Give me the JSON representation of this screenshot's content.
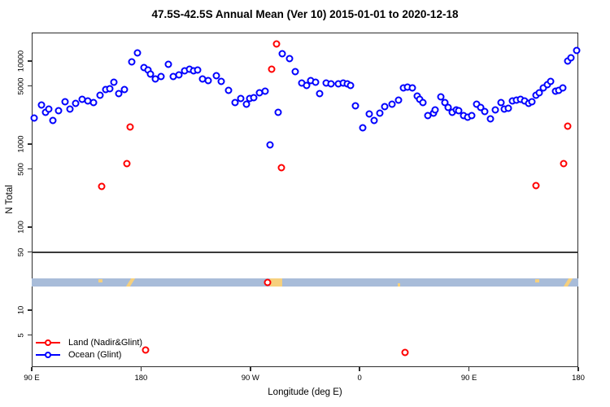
{
  "title": "47.5S-42.5S Annual Mean (Ver 10)   2015-01-01 to 2020-12-18",
  "chart_data": {
    "type": "scatter",
    "title": "47.5S-42.5S Annual Mean (Ver 10)   2015-01-01 to 2020-12-18",
    "xlabel": "Longitude (deg E)",
    "ylabel": "N Total",
    "y_scale": "log",
    "ylim": [
      2.06,
      22000
    ],
    "x_axis_span_deg": 450,
    "x_ticks": [
      {
        "deg": 0,
        "label": "90 E"
      },
      {
        "deg": 90,
        "label": "180"
      },
      {
        "deg": 180,
        "label": "90 W"
      },
      {
        "deg": 270,
        "label": "0"
      },
      {
        "deg": 360,
        "label": "90 E"
      },
      {
        "deg": 450,
        "label": "180"
      }
    ],
    "y_ticks": [
      {
        "value": 10000,
        "label": "10000"
      },
      {
        "value": 5000,
        "label": "5000"
      },
      {
        "value": 1000,
        "label": "1000"
      },
      {
        "value": 500,
        "label": "500"
      },
      {
        "value": 100,
        "label": "100"
      },
      {
        "value": 50,
        "label": "50"
      },
      {
        "value": 10,
        "label": "10"
      },
      {
        "value": 5,
        "label": "5"
      }
    ],
    "reference_line_value": 50,
    "grid": false,
    "legend_position": "bottom-left",
    "map_strip": {
      "ocean_color": "#a8bcd9",
      "land_color": "#f6d07d",
      "value_range": [
        19.2,
        24.1
      ],
      "land_patches": [
        {
          "name": "tasmania",
          "deg_from": 54.9,
          "deg_to": 58.3,
          "align": "top",
          "slant": false
        },
        {
          "name": "new-zealand",
          "deg_from": 76.0,
          "deg_to": 83.5,
          "align": "full",
          "slant": true
        },
        {
          "name": "south-america",
          "deg_from": 196.5,
          "deg_to": 206.5,
          "align": "full",
          "slant": false
        },
        {
          "name": "small-island",
          "deg_from": 301.5,
          "deg_to": 303.5,
          "align": "bottom",
          "slant": false
        },
        {
          "name": "tasmania",
          "deg_from": 414.5,
          "deg_to": 418.0,
          "align": "top",
          "slant": false
        },
        {
          "name": "new-zealand",
          "deg_from": 436.0,
          "deg_to": 443.5,
          "align": "full",
          "slant": true
        }
      ]
    },
    "series": [
      {
        "name": "Land (Nadir&Glint)",
        "color": "#ff0000",
        "points_format": [
          "deg_east_of_90E",
          "n_total"
        ],
        "points": [
          [
            57.4,
            310
          ],
          [
            78.6,
            580
          ],
          [
            81.0,
            1600
          ],
          [
            93.8,
            3.3
          ],
          [
            194.2,
            21.5
          ],
          [
            197.8,
            7980
          ],
          [
            201.6,
            15900
          ],
          [
            205.6,
            520
          ],
          [
            307.6,
            3.1
          ],
          [
            415.2,
            315
          ],
          [
            438.2,
            585
          ],
          [
            441.5,
            1640
          ]
        ]
      },
      {
        "name": "Ocean (Glint)",
        "color": "#0000ff",
        "points_format": [
          "deg_east_of_90E",
          "n_total"
        ],
        "points": [
          [
            1.8,
            2060
          ],
          [
            8.2,
            2980
          ],
          [
            11.2,
            2430
          ],
          [
            14.1,
            2620
          ],
          [
            17.4,
            1910
          ],
          [
            22.3,
            2540
          ],
          [
            27.3,
            3210
          ],
          [
            31.3,
            2660
          ],
          [
            36.4,
            3080
          ],
          [
            41.3,
            3480
          ],
          [
            46.2,
            3290
          ],
          [
            50.9,
            3180
          ],
          [
            56.3,
            3880
          ],
          [
            60.7,
            4500
          ],
          [
            64.3,
            4670
          ],
          [
            67.6,
            5560
          ],
          [
            71.9,
            4040
          ],
          [
            76.1,
            4500
          ],
          [
            82.6,
            9840
          ],
          [
            87.1,
            12600
          ],
          [
            92.2,
            8290
          ],
          [
            95.6,
            7860
          ],
          [
            97.8,
            7020
          ],
          [
            101.6,
            6130
          ],
          [
            106.7,
            6440
          ],
          [
            112.7,
            9080
          ],
          [
            116.7,
            6520
          ],
          [
            121.2,
            6830
          ],
          [
            126.1,
            7560
          ],
          [
            130.1,
            7920
          ],
          [
            133.1,
            7680
          ],
          [
            136.8,
            7800
          ],
          [
            140.6,
            6130
          ],
          [
            145.1,
            5860
          ],
          [
            151.8,
            6620
          ],
          [
            156.2,
            5690
          ],
          [
            161.8,
            4420
          ],
          [
            167.4,
            3180
          ],
          [
            171.9,
            3560
          ],
          [
            177.0,
            3010
          ],
          [
            179.7,
            3530
          ],
          [
            183.0,
            3580
          ],
          [
            187.5,
            4170
          ],
          [
            192.0,
            4330
          ],
          [
            196.4,
            970
          ],
          [
            203.1,
            2400
          ],
          [
            206.5,
            12100
          ],
          [
            212.1,
            10600
          ],
          [
            216.8,
            7410
          ],
          [
            222.1,
            5400
          ],
          [
            226.2,
            5070
          ],
          [
            229.5,
            5780
          ],
          [
            233.9,
            5560
          ],
          [
            237.3,
            4050
          ],
          [
            242.4,
            5400
          ],
          [
            246.6,
            5340
          ],
          [
            252.3,
            5250
          ],
          [
            256.7,
            5400
          ],
          [
            260.1,
            5250
          ],
          [
            262.3,
            5070
          ],
          [
            266.8,
            2890
          ],
          [
            272.4,
            1580
          ],
          [
            277.9,
            2310
          ],
          [
            281.9,
            1910
          ],
          [
            286.4,
            2360
          ],
          [
            290.9,
            2820
          ],
          [
            296.9,
            3050
          ],
          [
            302.0,
            3350
          ],
          [
            305.9,
            4690
          ],
          [
            309.4,
            4860
          ],
          [
            313.6,
            4750
          ],
          [
            317.2,
            3820
          ],
          [
            319.4,
            3490
          ],
          [
            322.1,
            3170
          ],
          [
            326.1,
            2190
          ],
          [
            330.6,
            2360
          ],
          [
            332.1,
            2570
          ],
          [
            336.6,
            3700
          ],
          [
            340.0,
            3150
          ],
          [
            342.7,
            2740
          ],
          [
            346.2,
            2400
          ],
          [
            349.4,
            2570
          ],
          [
            351.8,
            2530
          ],
          [
            355.6,
            2190
          ],
          [
            359.0,
            2100
          ],
          [
            362.3,
            2190
          ],
          [
            366.3,
            3050
          ],
          [
            369.7,
            2740
          ],
          [
            373.0,
            2470
          ],
          [
            377.5,
            1990
          ],
          [
            381.7,
            2570
          ],
          [
            386.4,
            3170
          ],
          [
            389.1,
            2610
          ],
          [
            392.4,
            2670
          ],
          [
            395.8,
            3280
          ],
          [
            399.1,
            3410
          ],
          [
            402.5,
            3490
          ],
          [
            405.8,
            3330
          ],
          [
            409.2,
            3090
          ],
          [
            411.9,
            3230
          ],
          [
            415.4,
            3910
          ],
          [
            418.1,
            4120
          ],
          [
            421.4,
            4750
          ],
          [
            424.4,
            5160
          ],
          [
            427.5,
            5690
          ],
          [
            431.1,
            4300
          ],
          [
            433.8,
            4440
          ],
          [
            437.1,
            4690
          ],
          [
            441.1,
            10000
          ],
          [
            444.2,
            11000
          ],
          [
            448.7,
            13300
          ]
        ]
      }
    ]
  }
}
